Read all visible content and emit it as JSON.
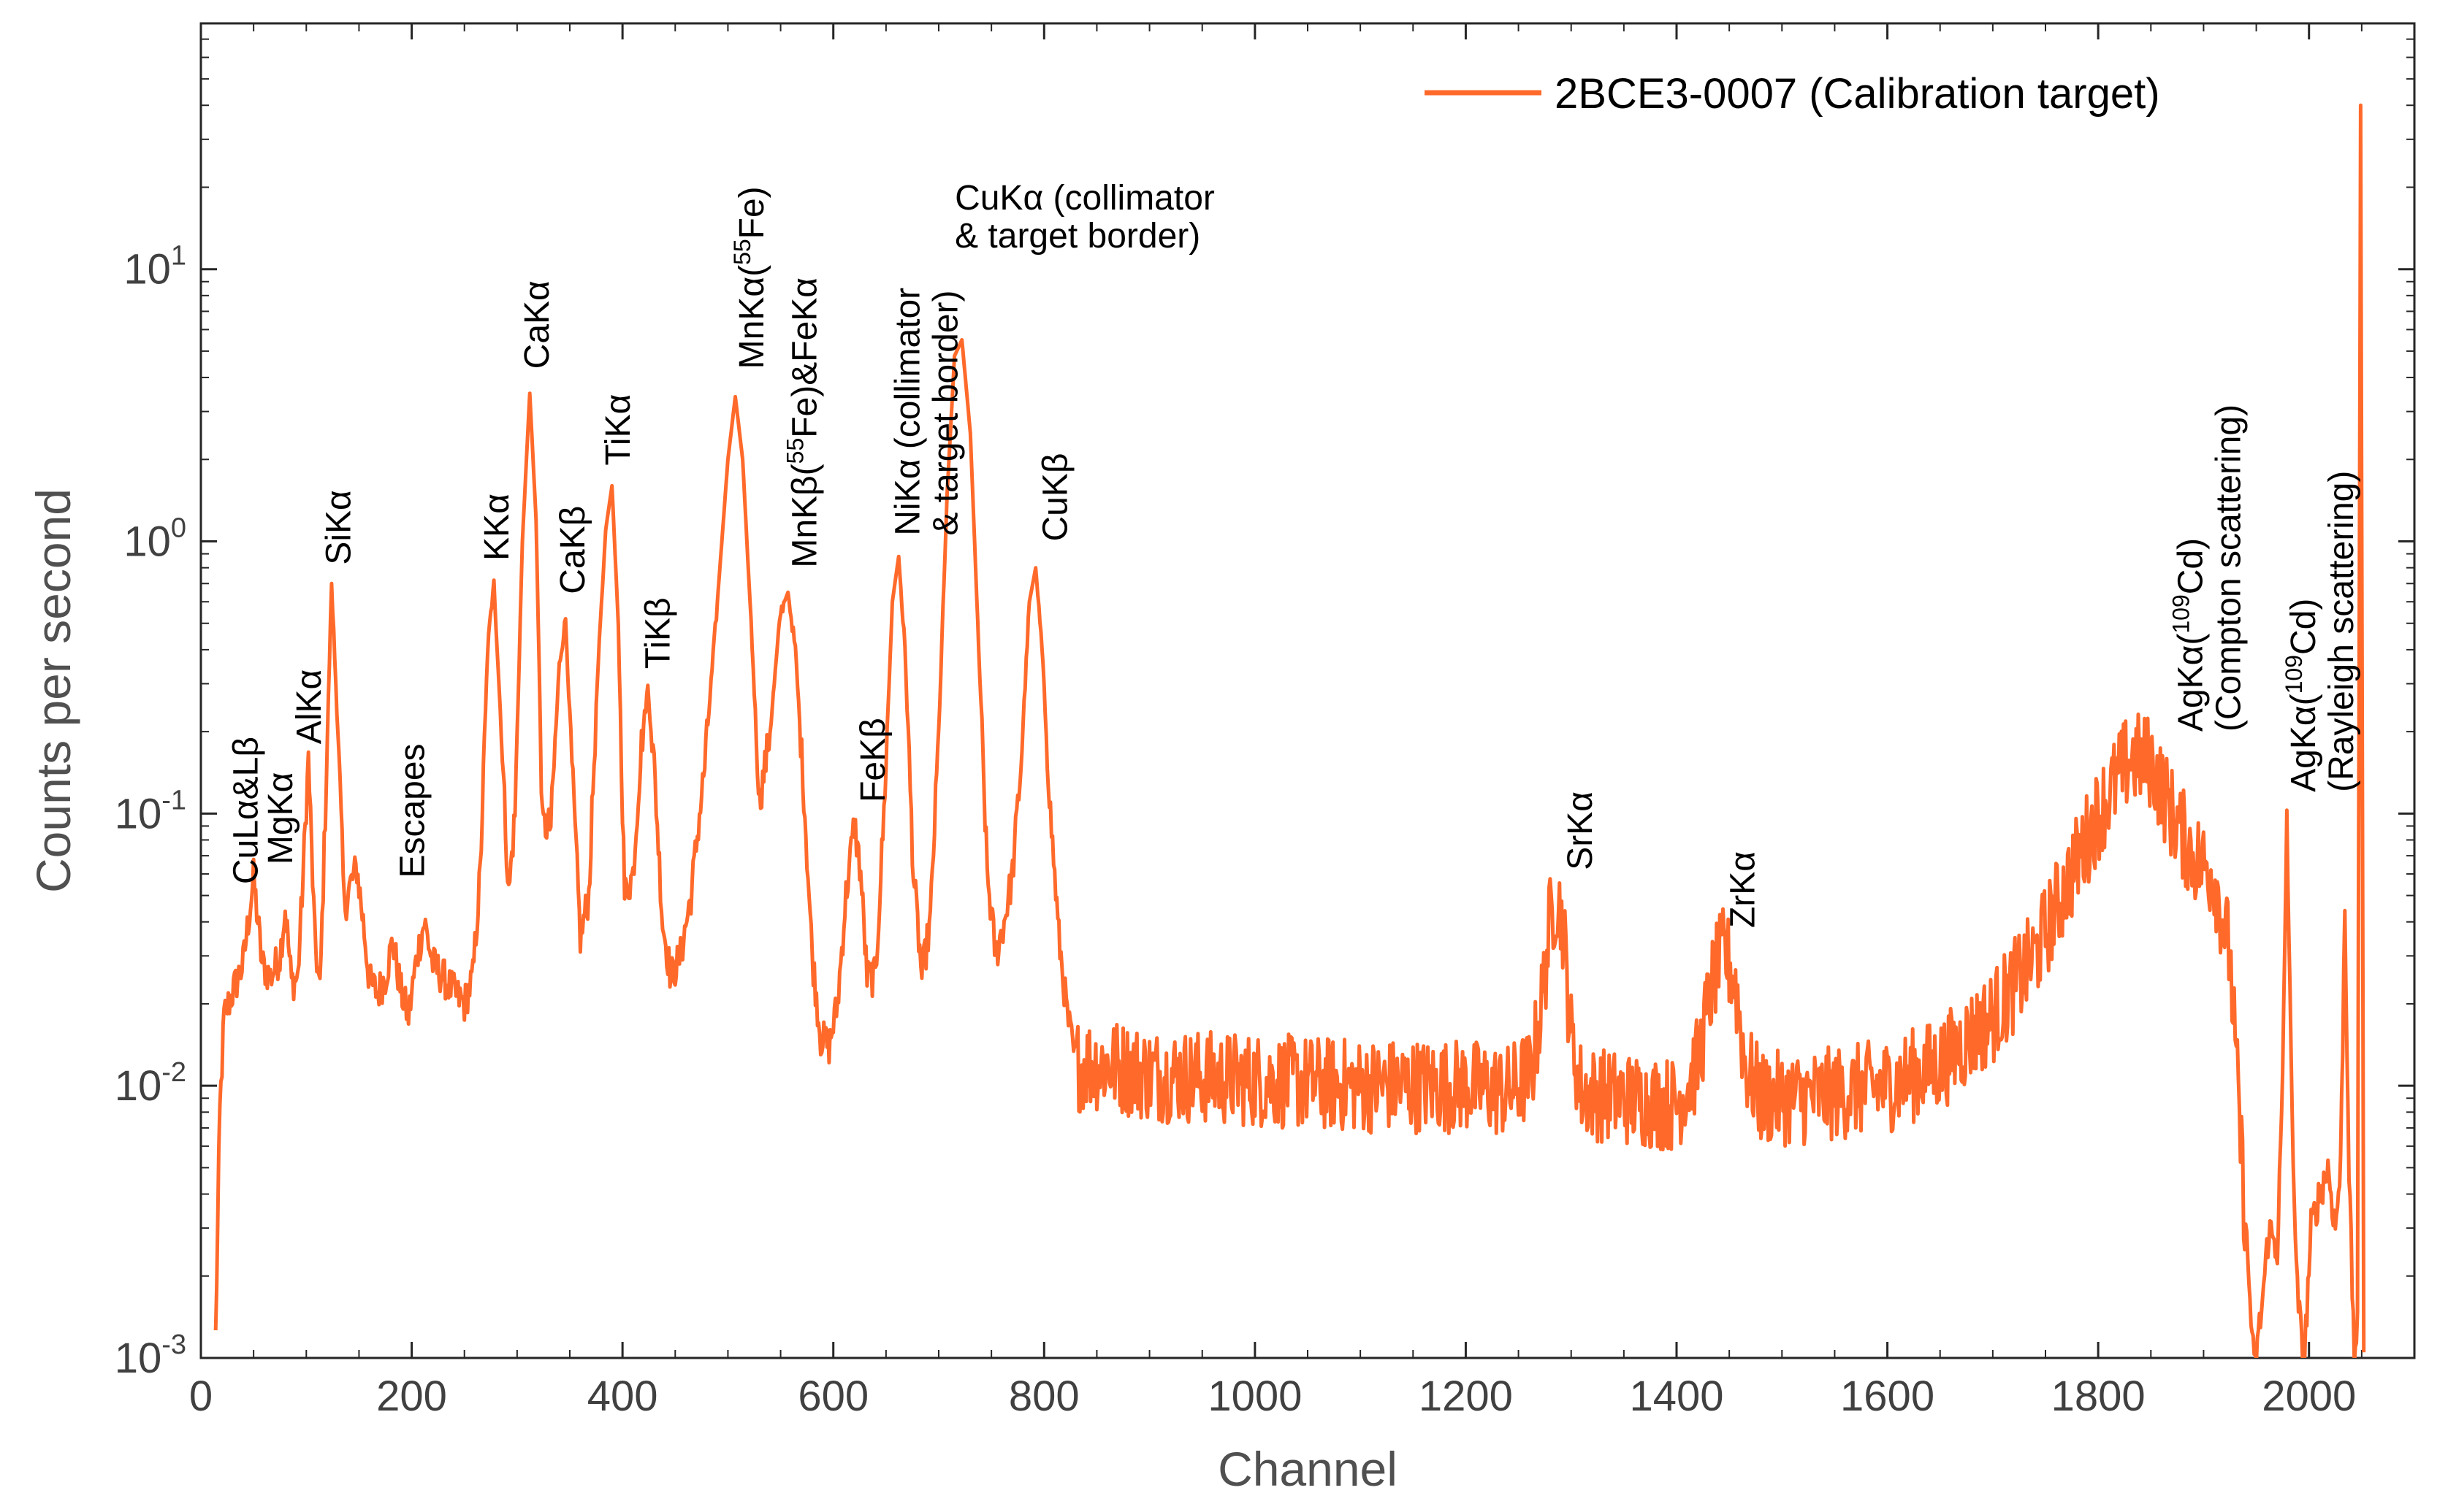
{
  "chart_data": {
    "type": "line",
    "title": "",
    "xlabel": "Channel",
    "ylabel": "Counts per second",
    "yscale": "log",
    "xlim": [
      0,
      2100
    ],
    "ylim": [
      0.001,
      80
    ],
    "grid": false,
    "legend_position": "top-right",
    "series_color": "#ff6a2b",
    "x_ticks": [
      {
        "value": 0,
        "label": "0"
      },
      {
        "value": 200,
        "label": "200"
      },
      {
        "value": 400,
        "label": "400"
      },
      {
        "value": 600,
        "label": "600"
      },
      {
        "value": 800,
        "label": "800"
      },
      {
        "value": 1000,
        "label": "1000"
      },
      {
        "value": 1200,
        "label": "1200"
      },
      {
        "value": 1400,
        "label": "1400"
      },
      {
        "value": 1600,
        "label": "1600"
      },
      {
        "value": 1800,
        "label": "1800"
      },
      {
        "value": 2000,
        "label": "2000"
      }
    ],
    "y_ticks": [
      {
        "value": 0.001,
        "base": "10",
        "exp": "-3"
      },
      {
        "value": 0.01,
        "base": "10",
        "exp": "-2"
      },
      {
        "value": 0.1,
        "base": "10",
        "exp": "-1"
      },
      {
        "value": 1,
        "base": "10",
        "exp": "0"
      },
      {
        "value": 10,
        "base": "10",
        "exp": "1"
      }
    ],
    "series": [
      {
        "name": "2BCE3-0007 (Calibration target)",
        "noise": {
          "start": 830,
          "end": 1940,
          "amplitude": 0.11
        },
        "points": [
          [
            14,
            0.0012
          ],
          [
            18,
            0.008
          ],
          [
            22,
            0.018
          ],
          [
            30,
            0.022
          ],
          [
            40,
            0.028
          ],
          [
            50,
            0.058
          ],
          [
            58,
            0.028
          ],
          [
            66,
            0.025
          ],
          [
            75,
            0.03
          ],
          [
            80,
            0.045
          ],
          [
            86,
            0.024
          ],
          [
            92,
            0.025
          ],
          [
            97,
            0.06
          ],
          [
            102,
            0.16
          ],
          [
            108,
            0.035
          ],
          [
            113,
            0.022
          ],
          [
            118,
            0.1
          ],
          [
            124,
            0.7
          ],
          [
            130,
            0.2
          ],
          [
            136,
            0.045
          ],
          [
            142,
            0.055
          ],
          [
            148,
            0.063
          ],
          [
            154,
            0.04
          ],
          [
            160,
            0.024
          ],
          [
            168,
            0.022
          ],
          [
            175,
            0.025
          ],
          [
            182,
            0.034
          ],
          [
            190,
            0.022
          ],
          [
            197,
            0.018
          ],
          [
            205,
            0.03
          ],
          [
            212,
            0.04
          ],
          [
            220,
            0.028
          ],
          [
            230,
            0.025
          ],
          [
            240,
            0.022
          ],
          [
            250,
            0.02
          ],
          [
            258,
            0.025
          ],
          [
            265,
            0.06
          ],
          [
            272,
            0.4
          ],
          [
            278,
            0.72
          ],
          [
            285,
            0.2
          ],
          [
            292,
            0.05
          ],
          [
            298,
            0.1
          ],
          [
            305,
            1.0
          ],
          [
            312,
            3.5
          ],
          [
            318,
            1.2
          ],
          [
            324,
            0.09
          ],
          [
            332,
            0.09
          ],
          [
            340,
            0.35
          ],
          [
            346,
            0.52
          ],
          [
            352,
            0.15
          ],
          [
            360,
            0.035
          ],
          [
            368,
            0.05
          ],
          [
            376,
            0.3
          ],
          [
            384,
            1.1
          ],
          [
            390,
            1.6
          ],
          [
            396,
            0.5
          ],
          [
            402,
            0.05
          ],
          [
            410,
            0.06
          ],
          [
            418,
            0.18
          ],
          [
            424,
            0.29
          ],
          [
            430,
            0.15
          ],
          [
            438,
            0.04
          ],
          [
            446,
            0.025
          ],
          [
            455,
            0.03
          ],
          [
            465,
            0.05
          ],
          [
            478,
            0.15
          ],
          [
            490,
            0.6
          ],
          [
            500,
            2.0
          ],
          [
            507,
            3.4
          ],
          [
            514,
            2.0
          ],
          [
            522,
            0.5
          ],
          [
            530,
            0.11
          ],
          [
            540,
            0.2
          ],
          [
            550,
            0.55
          ],
          [
            557,
            0.65
          ],
          [
            564,
            0.4
          ],
          [
            572,
            0.12
          ],
          [
            580,
            0.03
          ],
          [
            588,
            0.015
          ],
          [
            596,
            0.014
          ],
          [
            604,
            0.02
          ],
          [
            612,
            0.05
          ],
          [
            620,
            0.092
          ],
          [
            626,
            0.06
          ],
          [
            632,
            0.025
          ],
          [
            640,
            0.025
          ],
          [
            648,
            0.1
          ],
          [
            656,
            0.6
          ],
          [
            662,
            0.88
          ],
          [
            668,
            0.4
          ],
          [
            676,
            0.06
          ],
          [
            684,
            0.025
          ],
          [
            692,
            0.04
          ],
          [
            700,
            0.2
          ],
          [
            708,
            1.5
          ],
          [
            715,
            4.8
          ],
          [
            722,
            5.5
          ],
          [
            730,
            2.5
          ],
          [
            738,
            0.4
          ],
          [
            746,
            0.06
          ],
          [
            754,
            0.03
          ],
          [
            762,
            0.04
          ],
          [
            770,
            0.06
          ],
          [
            778,
            0.15
          ],
          [
            786,
            0.6
          ],
          [
            792,
            0.8
          ],
          [
            798,
            0.4
          ],
          [
            806,
            0.1
          ],
          [
            814,
            0.035
          ],
          [
            822,
            0.018
          ],
          [
            830,
            0.012
          ],
          [
            860,
            0.012
          ],
          [
            900,
            0.011
          ],
          [
            1000,
            0.0105
          ],
          [
            1100,
            0.01
          ],
          [
            1200,
            0.01
          ],
          [
            1240,
            0.0095
          ],
          [
            1262,
            0.011
          ],
          [
            1272,
            0.02
          ],
          [
            1280,
            0.04
          ],
          [
            1286,
            0.05
          ],
          [
            1292,
            0.04
          ],
          [
            1300,
            0.015
          ],
          [
            1310,
            0.0095
          ],
          [
            1350,
            0.009
          ],
          [
            1400,
            0.0085
          ],
          [
            1420,
            0.012
          ],
          [
            1435,
            0.025
          ],
          [
            1445,
            0.031
          ],
          [
            1455,
            0.025
          ],
          [
            1465,
            0.012
          ],
          [
            1480,
            0.009
          ],
          [
            1520,
            0.009
          ],
          [
            1600,
            0.01
          ],
          [
            1650,
            0.012
          ],
          [
            1700,
            0.018
          ],
          [
            1740,
            0.03
          ],
          [
            1770,
            0.055
          ],
          [
            1800,
            0.1
          ],
          [
            1830,
            0.16
          ],
          [
            1850,
            0.155
          ],
          [
            1870,
            0.1
          ],
          [
            1890,
            0.07
          ],
          [
            1910,
            0.06
          ],
          [
            1925,
            0.03
          ],
          [
            1932,
            0.01
          ],
          [
            1940,
            0.003
          ],
          [
            1948,
            0.0009
          ],
          [
            1955,
            0.0015
          ],
          [
            1962,
            0.003
          ],
          [
            1970,
            0.0025
          ],
          [
            1975,
            0.01
          ],
          [
            1979,
            0.1
          ],
          [
            1983,
            0.012
          ],
          [
            1988,
            0.002
          ],
          [
            1995,
            0.0009
          ],
          [
            2002,
            0.003
          ],
          [
            2010,
            0.004
          ],
          [
            2018,
            0.005
          ],
          [
            2025,
            0.003
          ],
          [
            2030,
            0.005
          ],
          [
            2034,
            0.045
          ],
          [
            2038,
            0.005
          ],
          [
            2043,
            0.0009
          ],
          [
            2046,
            0.0015
          ],
          [
            2049,
            40
          ],
          [
            2052,
            0.001
          ]
        ]
      }
    ],
    "annotations": [
      {
        "lines": [
          "CuLα&Lβ"
        ],
        "x": 42,
        "y": 0.055,
        "rotate": true
      },
      {
        "lines": [
          "MgKα"
        ],
        "x": 75,
        "y": 0.065,
        "rotate": true
      },
      {
        "lines": [
          "AlKα"
        ],
        "x": 102,
        "y": 0.18,
        "rotate": true
      },
      {
        "lines": [
          "SiKα"
        ],
        "x": 130,
        "y": 0.82,
        "rotate": true
      },
      {
        "lines": [
          "Escapes"
        ],
        "x": 200,
        "y": 0.058,
        "rotate": true
      },
      {
        "lines": [
          "KKα"
        ],
        "x": 280,
        "y": 0.85,
        "rotate": true
      },
      {
        "lines": [
          "CaKα"
        ],
        "x": 318,
        "y": 4.3,
        "rotate": true
      },
      {
        "lines": [
          "CaKβ"
        ],
        "x": 352,
        "y": 0.64,
        "rotate": true
      },
      {
        "lines": [
          "TiKα"
        ],
        "x": 395,
        "y": 1.9,
        "rotate": true
      },
      {
        "lines": [
          "TiKβ"
        ],
        "x": 433,
        "y": 0.34,
        "rotate": true
      },
      {
        "lines": [
          "MnKα(55Fe)"
        ],
        "x": 522,
        "y": 4.3,
        "rotate": true
      },
      {
        "lines": [
          "MnKβ(55Fe)&FeKα"
        ],
        "x": 572,
        "y": 0.8,
        "rotate": true
      },
      {
        "lines": [
          "FeKβ"
        ],
        "x": 637,
        "y": 0.11,
        "rotate": true
      },
      {
        "lines": [
          "NiKα (collimator",
          "& target border)"
        ],
        "x": 688,
        "y": 1.05,
        "rotate": true
      },
      {
        "lines": [
          "CuKα (collimator",
          "& target border)"
        ],
        "x": 725,
        "y": 12,
        "rotate": false
      },
      {
        "lines": [
          "CuKβ"
        ],
        "x": 810,
        "y": 1.0,
        "rotate": true
      },
      {
        "lines": [
          "SrKα"
        ],
        "x": 1308,
        "y": 0.062,
        "rotate": true
      },
      {
        "lines": [
          "ZrKα"
        ],
        "x": 1462,
        "y": 0.038,
        "rotate": true
      },
      {
        "lines": [
          "AgKα(109Cd)",
          "(Compton scattering)"
        ],
        "x": 1905,
        "y": 0.2,
        "rotate": true
      },
      {
        "lines": [
          "AgKα(109Cd)",
          "(Rayleigh scattering)"
        ],
        "x": 2012,
        "y": 0.12,
        "rotate": true
      }
    ]
  }
}
